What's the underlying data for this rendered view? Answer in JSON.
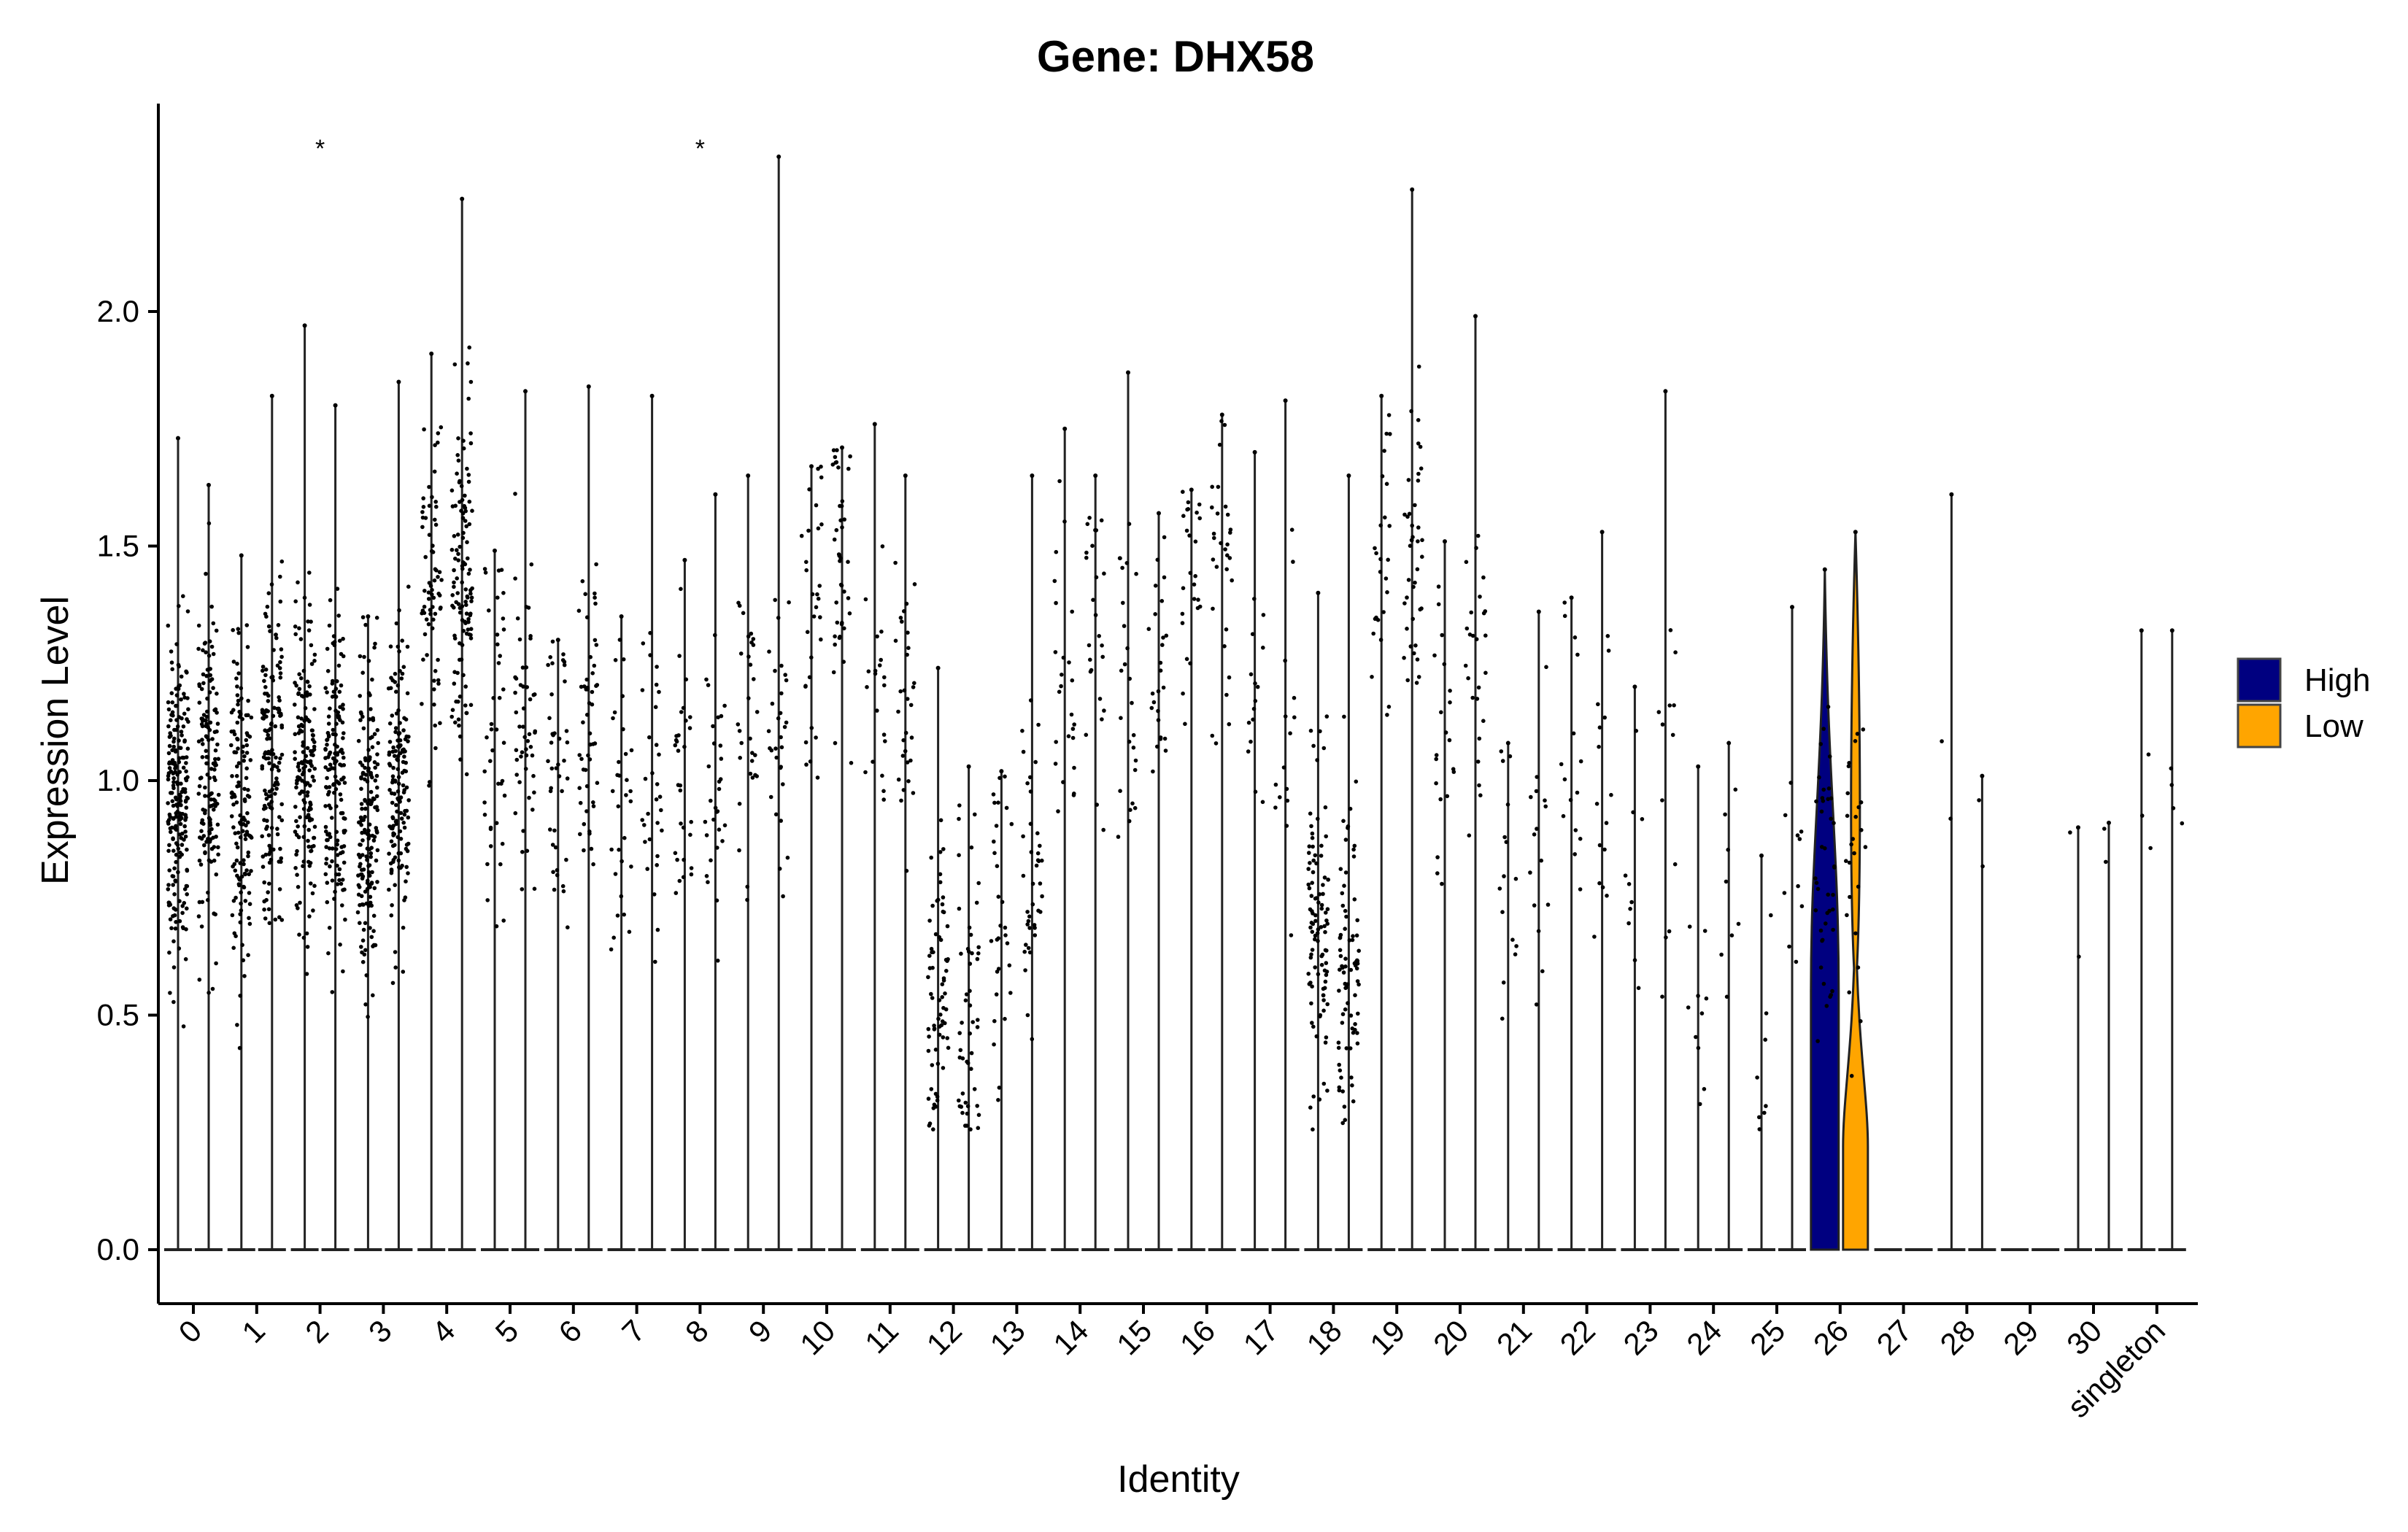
{
  "chart_data": {
    "type": "violin",
    "title": "Gene: DHX58",
    "xlabel": "Identity",
    "ylabel": "Expression Level",
    "ylim": [
      -0.12,
      2.45
    ],
    "yticks": [
      "0.0",
      "0.5",
      "1.0",
      "1.5",
      "2.0"
    ],
    "ytick_values": [
      0,
      0.5,
      1.0,
      1.5,
      2.0
    ],
    "categories": [
      "0",
      "1",
      "2",
      "3",
      "4",
      "5",
      "6",
      "7",
      "8",
      "9",
      "10",
      "11",
      "12",
      "13",
      "14",
      "15",
      "16",
      "17",
      "18",
      "19",
      "20",
      "21",
      "22",
      "23",
      "24",
      "25",
      "26",
      "27",
      "28",
      "29",
      "30",
      "singleton"
    ],
    "series": [
      {
        "name": "High",
        "color": "#000080",
        "max": [
          1.73,
          1.48,
          1.97,
          1.35,
          1.91,
          1.49,
          1.3,
          1.35,
          1.47,
          1.65,
          1.67,
          1.76,
          1.24,
          1.02,
          1.75,
          1.87,
          1.62,
          1.7,
          1.4,
          1.82,
          1.51,
          1.08,
          1.39,
          1.2,
          1.03,
          0.84,
          1.45,
          0.0,
          1.61,
          0.0,
          0.9,
          1.32
        ],
        "center": [
          0.95,
          0.95,
          1.0,
          0.9,
          1.4,
          1.15,
          1.05,
          1.0,
          1.0,
          1.1,
          1.4,
          1.15,
          0.55,
          0.7,
          1.25,
          1.2,
          1.45,
          1.1,
          0.7,
          1.45,
          1.2,
          0.9,
          1.0,
          0.9,
          0.6,
          0.5,
          0.8,
          0.0,
          1.0,
          0.0,
          0.9,
          1.0
        ],
        "npts": [
          220,
          140,
          160,
          170,
          70,
          40,
          40,
          30,
          30,
          30,
          30,
          20,
          70,
          30,
          25,
          25,
          25,
          15,
          100,
          25,
          20,
          15,
          15,
          10,
          10,
          8,
          40,
          0,
          2,
          0,
          2,
          3
        ]
      },
      {
        "name": "Low",
        "color": "#FFA500",
        "max": [
          1.63,
          1.82,
          1.8,
          1.85,
          2.24,
          1.83,
          1.84,
          1.82,
          1.61,
          2.33,
          1.71,
          1.65,
          1.03,
          1.65,
          1.65,
          1.57,
          1.78,
          1.81,
          1.65,
          2.26,
          1.99,
          1.36,
          1.53,
          1.83,
          1.08,
          1.37,
          1.53,
          0.0,
          1.01,
          0.0,
          0.91,
          1.32
        ],
        "center": [
          1.0,
          1.05,
          1.0,
          1.0,
          1.45,
          1.1,
          1.15,
          1.05,
          1.0,
          1.1,
          1.45,
          1.15,
          0.5,
          0.8,
          1.3,
          1.2,
          1.45,
          1.05,
          0.6,
          1.5,
          1.3,
          0.95,
          0.95,
          0.95,
          0.7,
          0.8,
          0.85,
          0.0,
          1.0,
          0.0,
          0.9,
          1.0
        ],
        "npts": [
          150,
          150,
          160,
          150,
          120,
          50,
          50,
          30,
          30,
          30,
          40,
          30,
          50,
          40,
          25,
          25,
          30,
          15,
          80,
          40,
          25,
          15,
          15,
          12,
          8,
          10,
          25,
          0,
          2,
          0,
          2,
          4
        ]
      }
    ],
    "significance": [
      {
        "category": "2",
        "label": "*"
      },
      {
        "category": "8",
        "label": "*"
      }
    ],
    "legend": {
      "position": "right",
      "entries": [
        "High",
        "Low"
      ]
    },
    "grid": false
  }
}
